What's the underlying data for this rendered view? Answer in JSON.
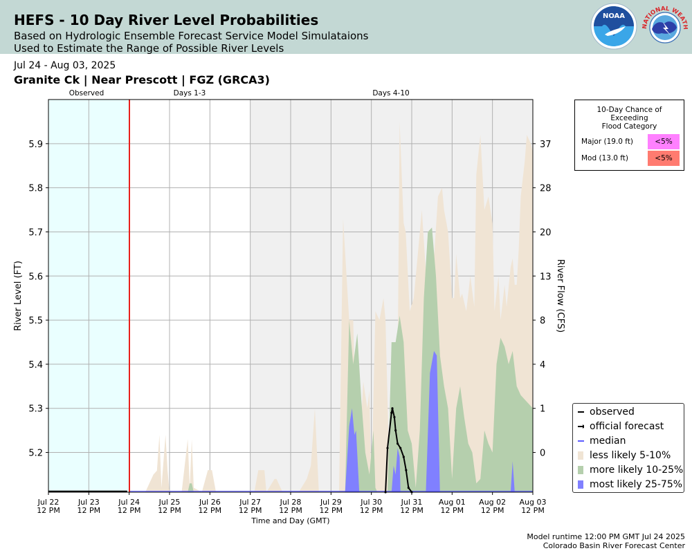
{
  "header": {
    "title": "HEFS - 10 Day River Level Probabilities",
    "subtitle_line1": "Based on Hydrologic Ensemble Forecast Service Model Simulataions",
    "subtitle_line2": "Used to Estimate the Range of Possible River Levels",
    "noaa_logo_text": "NOAA",
    "nws_logo_text": "NATIONAL WEATHER SERVICE"
  },
  "date_range": "Jul 24 - Aug 03, 2025",
  "station": "Granite Ck | Near Prescott | FGZ (GRCA3)",
  "periods": {
    "observed": "Observed",
    "days13": "Days 1-3",
    "days410": "Days 4-10"
  },
  "flood_box": {
    "title_lines": [
      "10-Day Chance of",
      "Exceeding",
      "Flood Category"
    ],
    "rows": [
      {
        "label": "Major (19.0 ft)",
        "value": "<5%",
        "color": "#ff80ff"
      },
      {
        "label": "Mod (13.0 ft)",
        "value": "<5%",
        "color": "#ff7b70"
      }
    ]
  },
  "legend": [
    {
      "label": "observed",
      "kind": "line",
      "color": "#000000"
    },
    {
      "label": "official forecast",
      "kind": "arrow",
      "color": "#000000"
    },
    {
      "label": "median",
      "kind": "line",
      "color": "#5b5bff"
    },
    {
      "label": "less likely 5-10%",
      "kind": "swatch",
      "color": "#f0e4d4"
    },
    {
      "label": "more likely 10-25%",
      "kind": "swatch",
      "color": "#b5cfad"
    },
    {
      "label": "most likely 25-75%",
      "kind": "swatch",
      "color": "#8080ff"
    }
  ],
  "footer": {
    "line1": "Model runtime 12:00 PM GMT Jul 24 2025",
    "line2": "Colorado Basin River Forecast Center"
  },
  "chart_data": {
    "type": "area",
    "xlabel": "Time and Day (GMT)",
    "ylabel": "River Level (FT)",
    "ylabel_right": "River Flow (CFS)",
    "xlim": [
      0,
      12
    ],
    "ylim": [
      5.11,
      6.0
    ],
    "x_unit": "days since Jul 22 12 PM",
    "x_ticks": [
      [
        "Jul 22",
        "12 PM"
      ],
      [
        "Jul 23",
        "12 PM"
      ],
      [
        "Jul 24",
        "12 PM"
      ],
      [
        "Jul 25",
        "12 PM"
      ],
      [
        "Jul 26",
        "12 PM"
      ],
      [
        "Jul 27",
        "12 PM"
      ],
      [
        "Jul 28",
        "12 PM"
      ],
      [
        "Jul 29",
        "12 PM"
      ],
      [
        "Jul 30",
        "12 PM"
      ],
      [
        "Jul 31",
        "12 PM"
      ],
      [
        "Aug 01",
        "12 PM"
      ],
      [
        "Aug 02",
        "12 PM"
      ],
      [
        "Aug 03",
        "12 PM"
      ]
    ],
    "y_ticks": [
      "5.2",
      "5.3",
      "5.4",
      "5.5",
      "5.6",
      "5.7",
      "5.8",
      "5.9"
    ],
    "y_tick_values": [
      5.2,
      5.3,
      5.4,
      5.5,
      5.6,
      5.7,
      5.8,
      5.9
    ],
    "y_right_ticks": [
      "0",
      "1",
      "4",
      "8",
      "13",
      "20",
      "28",
      "37"
    ],
    "grid": true,
    "legend_position": "bottom-right",
    "regions": {
      "observed": [
        0,
        2
      ],
      "days13": [
        2,
        5
      ],
      "days410": [
        5,
        12
      ],
      "forecast_start": 2
    },
    "series": [
      {
        "name": "less likely 5-10%",
        "color": "#f0e4d4",
        "x": [
          0,
          2.4,
          2.6,
          2.7,
          2.65,
          2.75,
          2.8,
          2.9,
          2.95,
          3.0,
          3.3,
          3.45,
          3.5,
          3.55,
          3.6,
          3.8,
          3.95,
          4.05,
          4.15,
          4.5,
          5.1,
          5.2,
          5.35,
          5.4,
          5.6,
          5.65,
          5.8,
          5.85,
          6.2,
          6.4,
          6.5,
          6.6,
          6.7,
          6.8,
          7.2,
          7.3,
          7.45,
          7.55,
          7.65,
          7.8,
          7.9,
          7.95,
          8.0,
          8.1,
          8.2,
          8.3,
          8.35,
          8.45,
          8.55,
          8.6,
          8.65,
          8.7,
          8.8,
          8.85,
          8.95,
          9.05,
          9.15,
          9.25,
          9.35,
          9.45,
          9.55,
          9.65,
          9.75,
          9.8,
          9.9,
          10.0,
          10.05,
          10.1,
          10.2,
          10.25,
          10.35,
          10.45,
          10.55,
          10.6,
          10.7,
          10.8,
          10.9,
          11.0,
          11.05,
          11.15,
          11.2,
          11.3,
          11.35,
          11.45,
          11.5,
          11.55,
          11.6,
          11.65,
          11.7,
          11.8,
          11.85,
          11.95,
          12.0
        ],
        "y": [
          5.11,
          5.11,
          5.15,
          5.16,
          5.11,
          5.24,
          5.12,
          5.24,
          5.16,
          5.11,
          5.11,
          5.23,
          5.12,
          5.23,
          5.12,
          5.11,
          5.16,
          5.16,
          5.11,
          5.11,
          5.11,
          5.16,
          5.16,
          5.11,
          5.14,
          5.14,
          5.11,
          5.11,
          5.11,
          5.14,
          5.17,
          5.3,
          5.11,
          5.11,
          5.11,
          5.73,
          5.5,
          5.5,
          5.12,
          5.36,
          5.3,
          5.34,
          5.12,
          5.52,
          5.5,
          5.55,
          5.5,
          5.14,
          5.43,
          5.32,
          5.38,
          5.95,
          5.72,
          5.7,
          5.52,
          5.55,
          5.65,
          5.75,
          5.61,
          5.7,
          5.64,
          5.78,
          5.8,
          5.75,
          5.7,
          5.55,
          5.55,
          5.65,
          5.55,
          5.56,
          5.52,
          5.6,
          5.53,
          5.83,
          5.92,
          5.75,
          5.78,
          5.72,
          5.52,
          5.6,
          5.5,
          5.58,
          5.53,
          5.62,
          5.64,
          5.58,
          5.58,
          5.66,
          5.78,
          5.86,
          5.92,
          5.9,
          5.88
        ]
      },
      {
        "name": "more likely 10-25%",
        "color": "#b5cfad",
        "x": [
          0,
          3.45,
          3.5,
          3.55,
          3.6,
          7.35,
          7.45,
          7.55,
          7.65,
          7.75,
          7.85,
          7.95,
          8.05,
          8.1,
          8.15,
          8.4,
          8.5,
          8.6,
          8.7,
          8.8,
          8.9,
          9.0,
          9.1,
          9.2,
          9.3,
          9.4,
          9.5,
          9.6,
          9.7,
          9.8,
          9.9,
          10.0,
          10.1,
          10.2,
          10.3,
          10.4,
          10.5,
          10.6,
          10.7,
          10.8,
          10.9,
          11.0,
          11.1,
          11.2,
          11.3,
          11.4,
          11.5,
          11.6,
          11.7,
          11.8,
          11.9,
          12.0
        ],
        "y": [
          5.11,
          5.11,
          5.13,
          5.13,
          5.11,
          5.11,
          5.5,
          5.4,
          5.47,
          5.32,
          5.2,
          5.15,
          5.25,
          5.12,
          5.11,
          5.11,
          5.45,
          5.45,
          5.51,
          5.45,
          5.25,
          5.22,
          5.12,
          5.25,
          5.55,
          5.7,
          5.71,
          5.6,
          5.42,
          5.35,
          5.3,
          5.14,
          5.3,
          5.35,
          5.28,
          5.22,
          5.2,
          5.13,
          5.14,
          5.25,
          5.22,
          5.2,
          5.4,
          5.46,
          5.44,
          5.4,
          5.43,
          5.35,
          5.33,
          5.32,
          5.31,
          5.3
        ]
      },
      {
        "name": "most likely 25-75%",
        "color": "#8080ff",
        "x": [
          0,
          7.35,
          7.45,
          7.52,
          7.58,
          7.62,
          7.7,
          7.72,
          8.5,
          8.55,
          8.6,
          8.65,
          8.7,
          8.72,
          9.35,
          9.45,
          9.55,
          9.62,
          9.7,
          11.45,
          11.5,
          11.55,
          12.0
        ],
        "y": [
          5.11,
          5.11,
          5.26,
          5.3,
          5.24,
          5.25,
          5.11,
          5.11,
          5.11,
          5.17,
          5.15,
          5.21,
          5.19,
          5.11,
          5.11,
          5.38,
          5.43,
          5.42,
          5.11,
          5.11,
          5.18,
          5.11,
          5.11
        ]
      }
    ],
    "observed": {
      "x": [
        0,
        1.95
      ],
      "y": [
        5.112,
        5.112
      ]
    },
    "official_forecast": {
      "x": [
        8.35,
        8.4,
        8.5,
        8.52,
        8.57,
        8.6,
        8.65,
        8.72,
        8.8,
        8.86,
        8.92,
        9.0
      ],
      "y": [
        5.11,
        5.21,
        5.29,
        5.3,
        5.28,
        5.25,
        5.22,
        5.21,
        5.19,
        5.16,
        5.12,
        5.11
      ]
    },
    "median": {
      "x": [
        2.0,
        12.0
      ],
      "y": [
        5.112,
        5.112
      ]
    }
  }
}
